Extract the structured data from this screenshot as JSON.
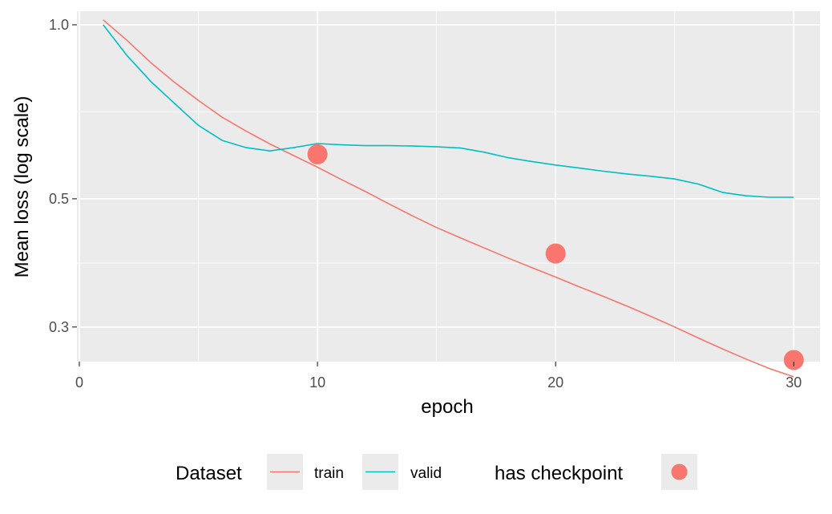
{
  "colors": {
    "panel_bg": "#ebebeb",
    "grid": "#ffffff",
    "axis_text": "#4d4d4d",
    "series_train": "#f8766d",
    "series_valid": "#00bfc4",
    "checkpoint": "#f8766d"
  },
  "chart_data": {
    "type": "line",
    "title": "",
    "xlabel": "epoch",
    "ylabel": "Mean loss (log scale)",
    "xlim": [
      -0.1,
      31.1
    ],
    "ylim": [
      0.2613,
      1.0556
    ],
    "y_scale": "log",
    "grid": true,
    "legend_position": "bottom",
    "x_ticks": [
      0,
      10,
      20,
      30
    ],
    "x_minor_ticks": [
      5,
      15,
      25
    ],
    "y_ticks": [
      0.3,
      0.5,
      1.0
    ],
    "y_tick_labels": [
      "0.3",
      "0.5",
      "1.0"
    ],
    "y_minor_ticks": [
      0.387,
      0.707
    ],
    "x": [
      1,
      2,
      3,
      4,
      5,
      6,
      7,
      8,
      9,
      10,
      11,
      12,
      13,
      14,
      15,
      16,
      17,
      18,
      19,
      20,
      21,
      22,
      23,
      24,
      25,
      26,
      27,
      28,
      29,
      30
    ],
    "series": [
      {
        "name": "train",
        "color": "#f8766d",
        "values": [
          1.02,
          0.94,
          0.86,
          0.795,
          0.74,
          0.692,
          0.655,
          0.622,
          0.594,
          0.567,
          0.54,
          0.515,
          0.49,
          0.467,
          0.446,
          0.428,
          0.411,
          0.395,
          0.38,
          0.366,
          0.352,
          0.339,
          0.326,
          0.313,
          0.3,
          0.287,
          0.275,
          0.264,
          0.254,
          0.246
        ]
      },
      {
        "name": "valid",
        "color": "#00bfc4",
        "values": [
          1.0,
          0.885,
          0.798,
          0.731,
          0.67,
          0.631,
          0.613,
          0.605,
          0.613,
          0.623,
          0.62,
          0.618,
          0.618,
          0.617,
          0.615,
          0.612,
          0.602,
          0.589,
          0.58,
          0.572,
          0.565,
          0.558,
          0.552,
          0.547,
          0.541,
          0.53,
          0.513,
          0.506,
          0.503,
          0.503
        ]
      }
    ],
    "checkpoints": [
      {
        "x": 10,
        "y": 0.597
      },
      {
        "x": 20,
        "y": 0.402
      },
      {
        "x": 30,
        "y": 0.263
      }
    ],
    "legend": {
      "dataset_title": "Dataset",
      "entries": [
        "train",
        "valid"
      ],
      "checkpoint_title": "has checkpoint"
    }
  }
}
